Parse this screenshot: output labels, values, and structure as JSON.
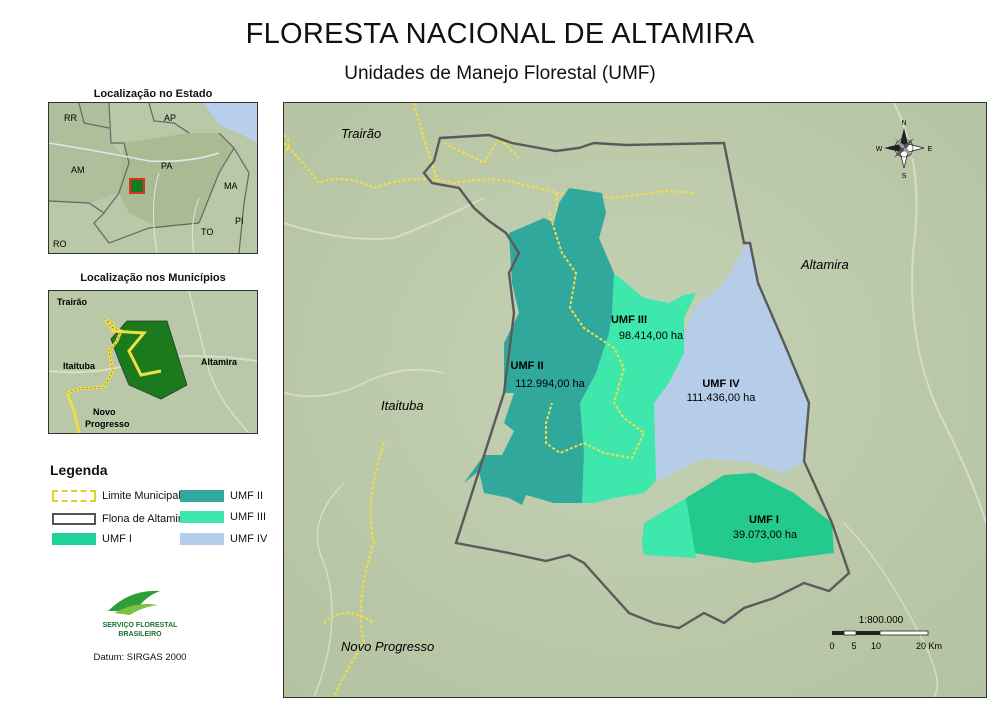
{
  "title": "FLORESTA NACIONAL DE ALTAMIRA",
  "subtitle": "Unidades de Manejo Florestal (UMF)",
  "inset_state": {
    "title": "Localização no Estado",
    "labels": [
      "RR",
      "AP",
      "AM",
      "PA",
      "MA",
      "TO",
      "PI",
      "RO"
    ]
  },
  "inset_municipios": {
    "title": "Localização nos Municípios",
    "labels": [
      "Trairão",
      "Itaituba",
      "Altamira",
      "Novo",
      "Progresso"
    ]
  },
  "legend": {
    "title": "Legenda",
    "items": [
      {
        "label": "Limite Municipal",
        "color": "#e8d84a"
      },
      {
        "label": "Flona de Altamira",
        "color": "#555555"
      },
      {
        "label": "UMF I",
        "color": "#1fd39a"
      },
      {
        "label": "UMF II",
        "color": "#31a89c"
      },
      {
        "label": "UMF III",
        "color": "#3ee8ad"
      },
      {
        "label": "UMF IV",
        "color": "#b5cde9"
      }
    ]
  },
  "logo": {
    "line1": "SERVIÇO FLORESTAL",
    "line2": "BRASILEIRO"
  },
  "datum": "Datum: SIRGAS 2000",
  "map": {
    "municipalities": [
      "Trairão",
      "Altamira",
      "Itaituba",
      "Novo Progresso"
    ],
    "umf": [
      {
        "name": "UMF I",
        "area": "39.073,00 ha",
        "color": "#1fd39a"
      },
      {
        "name": "UMF II",
        "area": "112.994,00 ha",
        "color": "#31a89c"
      },
      {
        "name": "UMF III",
        "area": "98.414,00 ha",
        "color": "#3ee8ad"
      },
      {
        "name": "UMF IV",
        "area": "111.436,00 ha",
        "color": "#b5cde9"
      }
    ],
    "scale_text": "1:800.000",
    "scale_ticks": [
      "0",
      "5",
      "10",
      "20 Km"
    ],
    "compass": [
      "N",
      "S",
      "E",
      "W"
    ]
  }
}
